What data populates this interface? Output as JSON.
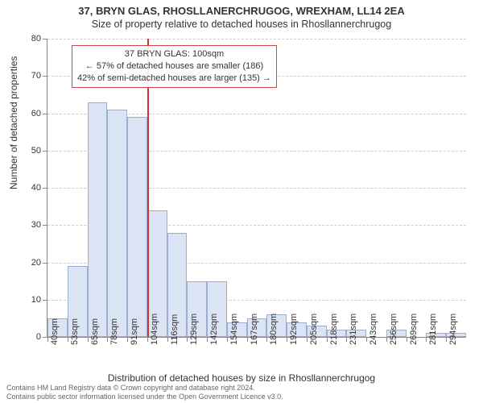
{
  "title_main": "37, BRYN GLAS, RHOSLLANERCHRUGOG, WREXHAM, LL14 2EA",
  "title_sub": "Size of property relative to detached houses in Rhosllannerchrugog",
  "ylabel": "Number of detached properties",
  "xlabel": "Distribution of detached houses by size in Rhosllannerchrugog",
  "footer1": "Contains HM Land Registry data © Crown copyright and database right 2024.",
  "footer2": "Contains OS data © Crown copyright and database right 2024.",
  "footer3": "Contains public sector information licensed under the Open Government Licence v3.0.",
  "chart": {
    "ylim_max": 80,
    "ytick_step": 10,
    "bar_fill": "#dbe4f4",
    "bar_border": "#9aaed1",
    "grid_color": "#cccccc",
    "axis_color": "#888888",
    "marker_color": "#d33333",
    "background": "#ffffff",
    "n_bars": 21,
    "bar_width_ratio": 1.0,
    "categories": [
      "40sqm",
      "53sqm",
      "65sqm",
      "78sqm",
      "91sqm",
      "104sqm",
      "116sqm",
      "129sqm",
      "142sqm",
      "154sqm",
      "167sqm",
      "180sqm",
      "192sqm",
      "205sqm",
      "218sqm",
      "231sqm",
      "243sqm",
      "256sqm",
      "269sqm",
      "281sqm",
      "294sqm"
    ],
    "values": [
      5,
      19,
      63,
      61,
      59,
      34,
      28,
      15,
      15,
      4,
      5,
      6,
      4,
      3,
      2,
      2,
      0,
      2,
      0,
      1,
      1
    ],
    "marker_position": 5.0,
    "annotation": {
      "line1": "37 BRYN GLAS: 100sqm",
      "line2": "← 57% of detached houses are smaller (186)",
      "line3": "42% of semi-detached houses are larger (135) →",
      "border_color": "#d44444"
    }
  }
}
